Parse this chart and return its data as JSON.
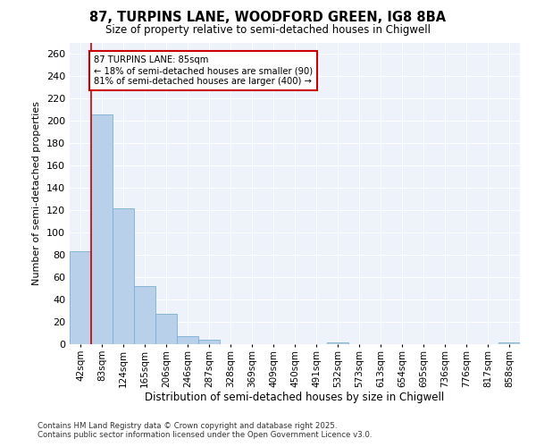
{
  "title_line1": "87, TURPINS LANE, WOODFORD GREEN, IG8 8BA",
  "title_line2": "Size of property relative to semi-detached houses in Chigwell",
  "xlabel": "Distribution of semi-detached houses by size in Chigwell",
  "ylabel": "Number of semi-detached properties",
  "categories": [
    "42sqm",
    "83sqm",
    "124sqm",
    "165sqm",
    "206sqm",
    "246sqm",
    "287sqm",
    "328sqm",
    "369sqm",
    "409sqm",
    "450sqm",
    "491sqm",
    "532sqm",
    "573sqm",
    "613sqm",
    "654sqm",
    "695sqm",
    "736sqm",
    "776sqm",
    "817sqm",
    "858sqm"
  ],
  "values": [
    83,
    206,
    122,
    52,
    27,
    7,
    4,
    0,
    0,
    0,
    0,
    0,
    2,
    0,
    0,
    0,
    0,
    0,
    0,
    0,
    2
  ],
  "bar_color": "#b8d0ea",
  "bar_edge_color": "#7aafd4",
  "vline_color": "#cc0000",
  "annotation_box_color": "#cc0000",
  "background_color": "#eef2fa",
  "ylim": [
    0,
    270
  ],
  "yticks": [
    0,
    20,
    40,
    60,
    80,
    100,
    120,
    140,
    160,
    180,
    200,
    220,
    240,
    260
  ],
  "property_sqm": 85,
  "pct_smaller": 18,
  "pct_larger": 81,
  "n_smaller": 90,
  "n_larger": 400,
  "footer_line1": "Contains HM Land Registry data © Crown copyright and database right 2025.",
  "footer_line2": "Contains public sector information licensed under the Open Government Licence v3.0."
}
